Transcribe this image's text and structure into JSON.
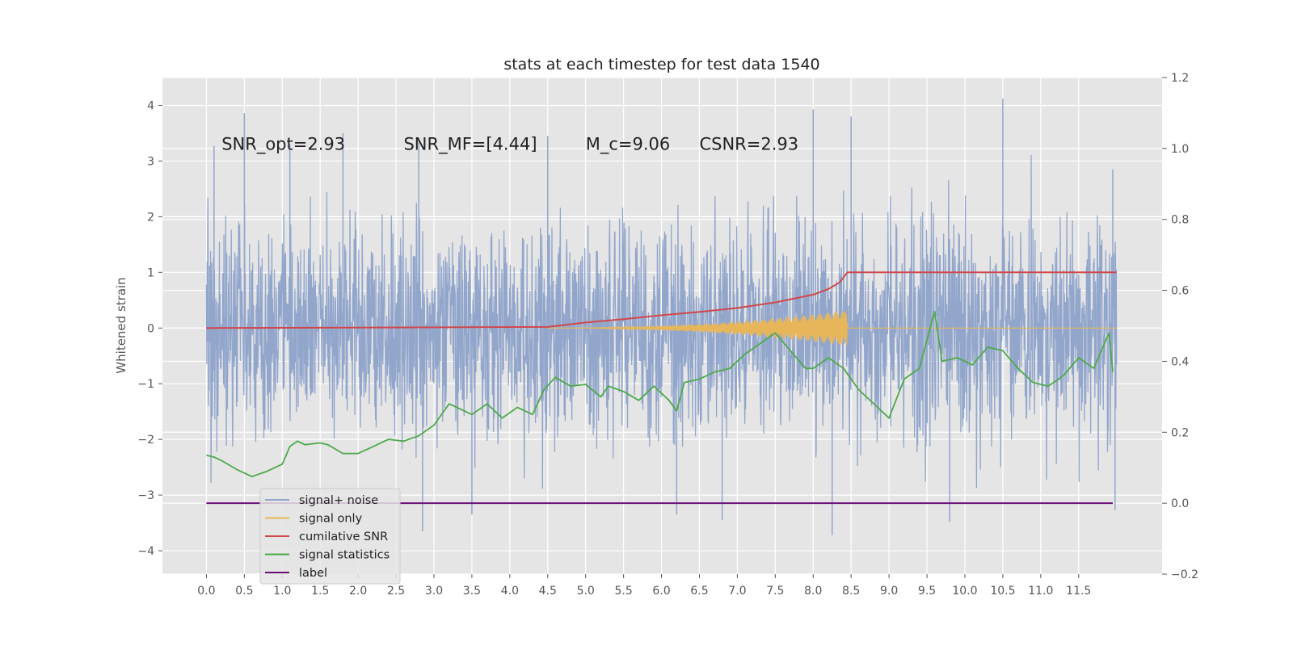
{
  "chart_data": {
    "type": "line",
    "title": "stats at each timestep for test data 1540",
    "ylabel": "Whitened strain",
    "ylabel_right": "",
    "x_ticks": [
      0.0,
      0.5,
      1.0,
      1.5,
      2.0,
      2.5,
      3.0,
      3.5,
      4.0,
      4.5,
      5.0,
      5.5,
      6.0,
      6.5,
      7.0,
      7.5,
      8.0,
      8.5,
      9.0,
      9.5,
      10.0,
      10.5,
      11.0,
      11.5
    ],
    "x_tick_labels": [
      "0.0",
      "0.5",
      "1.0",
      "1.5",
      "2.0",
      "2.5",
      "3.0",
      "3.5",
      "4.0",
      "4.5",
      "5.0",
      "5.5",
      "6.0",
      "6.5",
      "7.0",
      "7.5",
      "8.0",
      "8.5",
      "9.0",
      "9.5",
      "10.0",
      "10.5",
      "11.0",
      "11.5"
    ],
    "xlim": [
      -0.58,
      12.6
    ],
    "ylim": [
      -4.42,
      4.5
    ],
    "y_ticks": [
      -4,
      -3,
      -2,
      -1,
      0,
      1,
      2,
      3,
      4
    ],
    "y_tick_labels": [
      "−4",
      "−3",
      "−2",
      "−1",
      "0",
      "1",
      "2",
      "3",
      "4"
    ],
    "ylim_right": [
      -0.2,
      1.2
    ],
    "y_ticks_right": [
      -0.2,
      0.0,
      0.2,
      0.4,
      0.6,
      0.8,
      1.0,
      1.2
    ],
    "y_tick_labels_right": [
      "−0.2",
      "0.0",
      "0.2",
      "0.4",
      "0.6",
      "0.8",
      "1.0",
      "1.2"
    ],
    "grid": true,
    "background": "#e5e5e5",
    "annotations": [
      {
        "text": "SNR_opt=2.93",
        "x": 0.2,
        "y": 3.3
      },
      {
        "text": "SNR_MF=[4.44]",
        "x": 2.6,
        "y": 3.3
      },
      {
        "text": "M_c=9.06",
        "x": 5.0,
        "y": 3.3
      },
      {
        "text": "CSNR=2.93",
        "x": 6.5,
        "y": 3.3
      }
    ],
    "legend": {
      "location": "lower left",
      "entries": [
        "signal+ noise",
        "signal only",
        "cumilative SNR",
        "signal statistics",
        "label"
      ]
    },
    "series": [
      {
        "name": "signal+ noise",
        "axis": "left",
        "color": "#92a6cc",
        "kind": "noise",
        "x_range": [
          0.0,
          12.0
        ],
        "peaks": [
          {
            "x": 0.1,
            "y": 3.27
          },
          {
            "x": 0.5,
            "y": 3.86
          },
          {
            "x": 1.1,
            "y": 3.3
          },
          {
            "x": 1.8,
            "y": 3.5
          },
          {
            "x": 2.8,
            "y": 3.4
          },
          {
            "x": 4.5,
            "y": 3.45
          },
          {
            "x": 8.0,
            "y": 3.93
          },
          {
            "x": 8.5,
            "y": 3.8
          },
          {
            "x": 10.5,
            "y": 4.12
          },
          {
            "x": 11.95,
            "y": 2.85
          }
        ],
        "troughs": [
          {
            "x": 2.85,
            "y": -3.65
          },
          {
            "x": 3.5,
            "y": -3.35
          },
          {
            "x": 6.2,
            "y": -3.35
          },
          {
            "x": 6.8,
            "y": -3.45
          },
          {
            "x": 8.25,
            "y": -3.72
          },
          {
            "x": 9.8,
            "y": -3.48
          },
          {
            "x": 11.98,
            "y": -3.27
          }
        ]
      },
      {
        "name": "signal only",
        "axis": "left",
        "color": "#e8b65a",
        "kind": "chirp",
        "x_start": 4.5,
        "x_merger": 8.45,
        "max_amplitude": 0.32,
        "x_end": 12.0
      },
      {
        "name": "cumilative SNR",
        "axis": "left",
        "color": "#d0474b",
        "x": [
          0.0,
          4.5,
          5.0,
          5.5,
          6.0,
          6.5,
          7.0,
          7.5,
          8.0,
          8.2,
          8.35,
          8.45,
          8.5,
          12.0
        ],
        "y": [
          0.0,
          0.02,
          0.1,
          0.16,
          0.23,
          0.29,
          0.36,
          0.46,
          0.6,
          0.7,
          0.82,
          1.0,
          1.0,
          1.0
        ]
      },
      {
        "name": "signal statistics",
        "axis": "right",
        "color": "#4ea94b",
        "x": [
          0.0,
          0.1,
          0.2,
          0.4,
          0.6,
          0.8,
          1.0,
          1.1,
          1.2,
          1.3,
          1.5,
          1.6,
          1.8,
          2.0,
          2.2,
          2.4,
          2.6,
          2.8,
          3.0,
          3.2,
          3.3,
          3.5,
          3.7,
          3.9,
          4.1,
          4.3,
          4.45,
          4.6,
          4.8,
          5.0,
          5.2,
          5.3,
          5.5,
          5.7,
          5.9,
          6.1,
          6.2,
          6.3,
          6.5,
          6.7,
          6.9,
          7.1,
          7.3,
          7.5,
          7.7,
          7.9,
          8.0,
          8.2,
          8.4,
          8.6,
          8.8,
          9.0,
          9.2,
          9.4,
          9.6,
          9.7,
          9.9,
          10.1,
          10.3,
          10.5,
          10.7,
          10.9,
          11.1,
          11.3,
          11.5,
          11.7,
          11.9,
          11.95
        ],
        "y": [
          0.135,
          0.13,
          0.12,
          0.095,
          0.075,
          0.09,
          0.11,
          0.16,
          0.175,
          0.165,
          0.17,
          0.165,
          0.14,
          0.14,
          0.16,
          0.18,
          0.175,
          0.19,
          0.22,
          0.28,
          0.27,
          0.25,
          0.28,
          0.24,
          0.27,
          0.25,
          0.32,
          0.355,
          0.33,
          0.335,
          0.3,
          0.33,
          0.315,
          0.29,
          0.33,
          0.29,
          0.26,
          0.34,
          0.35,
          0.37,
          0.38,
          0.42,
          0.45,
          0.48,
          0.43,
          0.38,
          0.38,
          0.41,
          0.38,
          0.32,
          0.28,
          0.24,
          0.35,
          0.38,
          0.54,
          0.4,
          0.41,
          0.39,
          0.44,
          0.43,
          0.38,
          0.34,
          0.33,
          0.36,
          0.41,
          0.38,
          0.48,
          0.37
        ]
      },
      {
        "name": "label",
        "axis": "right",
        "color": "#6b0d77",
        "x": [
          0.0,
          11.95
        ],
        "y": [
          0.0,
          0.0
        ]
      }
    ]
  }
}
